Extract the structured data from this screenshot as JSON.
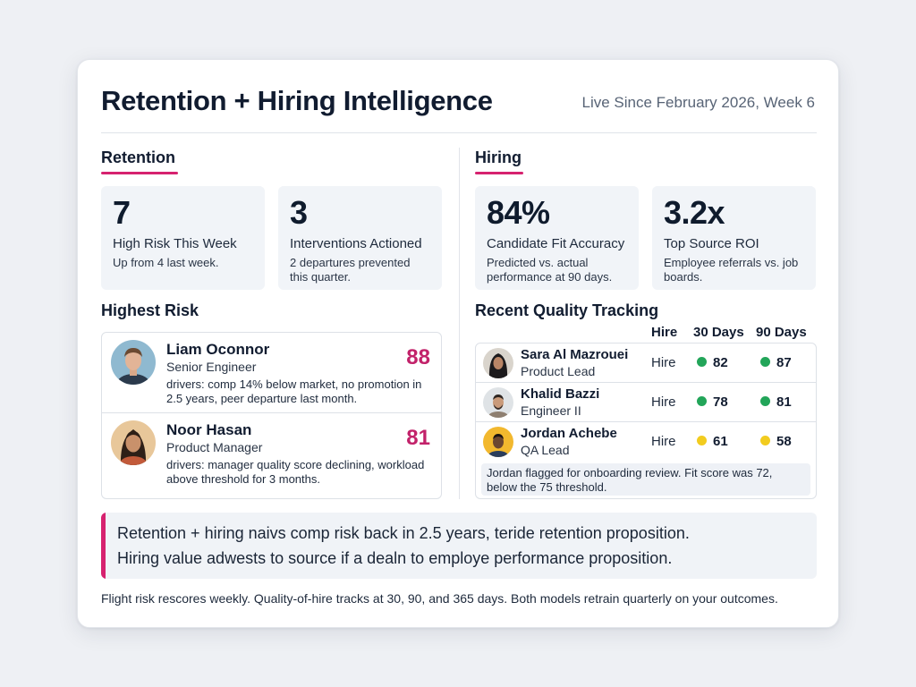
{
  "header": {
    "title": "Retention + Hiring Intelligence",
    "subtitle": "Live Since February 2026, Week 6"
  },
  "retention": {
    "label": "Retention",
    "stats": [
      {
        "value": "7",
        "label": "High Risk This Week",
        "sub": "Up from 4 last week."
      },
      {
        "value": "3",
        "label": "Interventions Actioned",
        "sub": "2 departures prevented this quarter."
      }
    ],
    "highest_risk_title": "Highest Risk",
    "people": [
      {
        "name": "Liam Oconnor",
        "role": "Senior Engineer",
        "score": "88",
        "drivers": "drivers: comp 14% below market, no promotion in 2.5 years, peer departure last month."
      },
      {
        "name": "Noor Hasan",
        "role": "Product Manager",
        "score": "81",
        "drivers": "drivers: manager quality score declining, workload above threshold for 3 months."
      }
    ]
  },
  "hiring": {
    "label": "Hiring",
    "stats": [
      {
        "value": "84%",
        "label": "Candidate Fit Accuracy",
        "sub": "Predicted vs. actual performance at 90 days."
      },
      {
        "value": "3.2x",
        "label": "Top Source ROI",
        "sub": "Employee referrals vs. job boards."
      }
    ],
    "quality_title": "Recent Quality Tracking",
    "columns": [
      "Hire",
      "30 Days",
      "90 Days"
    ],
    "rows": [
      {
        "name": "Sara Al Mazrouei",
        "role": "Product Lead",
        "hire": "Hire",
        "d30": "82",
        "d30_color": "#22a559",
        "d90": "87",
        "d90_color": "#22a559"
      },
      {
        "name": "Khalid Bazzi",
        "role": "Engineer II",
        "hire": "Hire",
        "d30": "78",
        "d30_color": "#22a559",
        "d90": "81",
        "d90_color": "#22a559"
      },
      {
        "name": "Jordan Achebe",
        "role": "QA Lead",
        "hire": "Hire",
        "d30": "61",
        "d30_color": "#f2cc1f",
        "d90": "58",
        "d90_color": "#f2cc1f"
      }
    ],
    "note": "Jordan flagged for onboarding review. Fit score was 72, below the 75 threshold."
  },
  "insight": {
    "line1": "Retention + hiring naivs comp risk back in 2.5 years, teride retention proposition.",
    "line2": "Hiring value adwests to source if a dealn to employe performance proposition."
  },
  "footer": "Flight risk rescores weekly. Quality-of-hire tracks at 30, 90, and 365 days. Both models retrain quarterly on your outcomes.",
  "colors": {
    "accent": "#d6226f",
    "score": "#c2226a",
    "good": "#22a559",
    "warn": "#f2cc1f"
  }
}
